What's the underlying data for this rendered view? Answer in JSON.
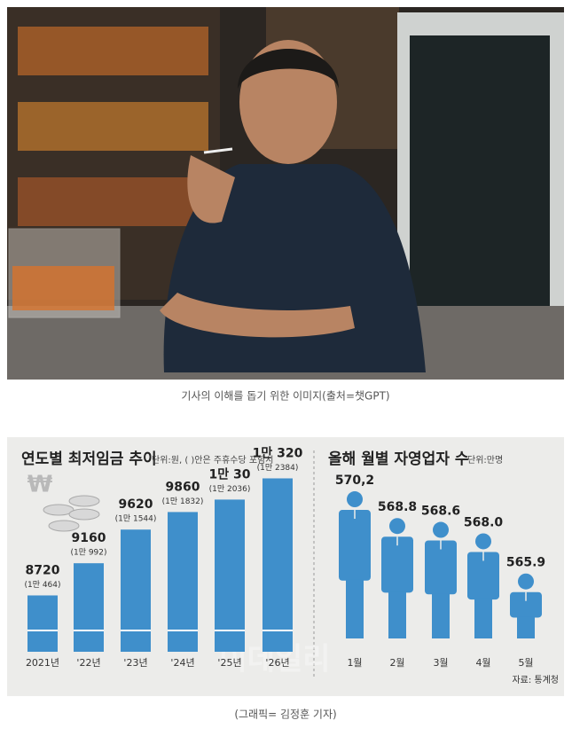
{
  "photo_caption": "기사의 이해를 돕기 위한 이미지(출처=챗GPT)",
  "graphic_credit": "(그래픽= 김정훈 기자)",
  "watermark": "이데일리",
  "chart_data": [
    {
      "type": "bar",
      "title": "연도별 최저임금 추이",
      "subtitle": "단위:원, ( )안은 주휴수당 포함시",
      "categories": [
        "2021년",
        "'22년",
        "'23년",
        "'24년",
        "'25년",
        "'26년"
      ],
      "values": [
        8720,
        9160,
        9620,
        9860,
        10030,
        10320
      ],
      "value_labels": [
        "8720",
        "9160",
        "9620",
        "9860",
        "1만 30",
        "1만 320"
      ],
      "allowance_values": [
        10464,
        10992,
        11544,
        11832,
        12036,
        12384
      ],
      "allowance_labels": [
        "(1만 464)",
        "(1만 992)",
        "(1만 1544)",
        "(1만 1832)",
        "(1만 2036)",
        "(1만 2384)"
      ],
      "color": "#3f8fcb",
      "ylim": [
        7950,
        10750
      ]
    },
    {
      "type": "pictogram",
      "title": "올해 월별 자영업자 수",
      "subtitle": "단위:만명",
      "categories": [
        "1월",
        "2월",
        "3월",
        "4월",
        "5월"
      ],
      "values": [
        570.2,
        568.8,
        568.6,
        568.0,
        565.9
      ],
      "value_labels": [
        "570,2",
        "568.8",
        "568.6",
        "568.0",
        "565.9"
      ],
      "color": "#3f8fcb",
      "ylim": [
        562.5,
        571.5
      ],
      "source": "자료: 통계청"
    }
  ]
}
